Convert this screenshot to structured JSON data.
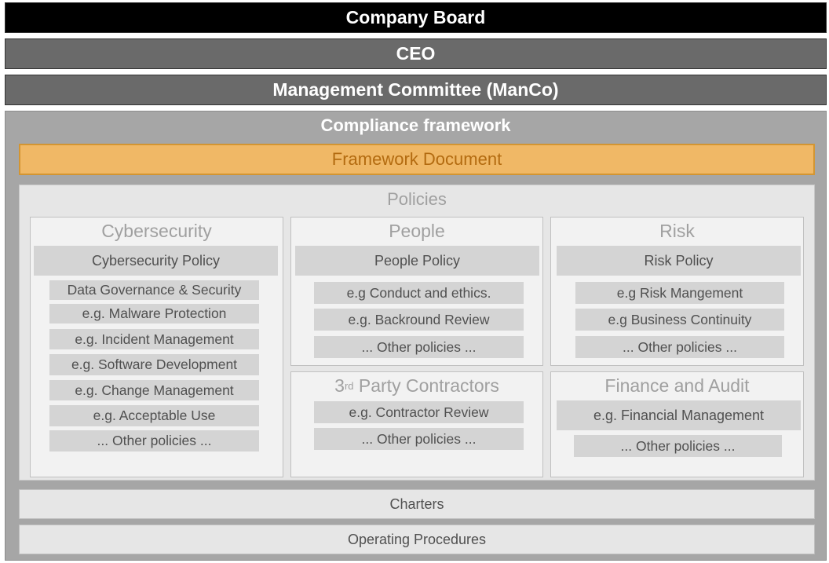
{
  "levels": {
    "board": "Company Board",
    "ceo": "CEO",
    "manco": "Management Committee (ManCo)"
  },
  "compliance": {
    "title": "Compliance framework",
    "framework_document": "Framework Document",
    "policies_title": "Policies",
    "charters": "Charters",
    "operating_procedures": "Operating Procedures"
  },
  "cyber": {
    "title": "Cybersecurity",
    "policy": "Cybersecurity Policy",
    "items": [
      "Data Governance & Security",
      "e.g. Malware Protection",
      "e.g. Incident Management",
      "e.g. Software Development",
      "e.g. Change Management",
      "e.g. Acceptable Use",
      "... Other policies ..."
    ]
  },
  "people": {
    "title": "People",
    "policy": "People Policy",
    "items": [
      "e.g Conduct and ethics.",
      "e.g. Backround Review",
      "... Other policies ..."
    ]
  },
  "risk": {
    "title": "Risk",
    "policy": "Risk Policy",
    "items": [
      "e.g Risk Mangement",
      "e.g Business Continuity",
      "... Other policies ..."
    ]
  },
  "contractors": {
    "title_num": "3",
    "title_sup": "rd",
    "title_rest": " Party Contractors",
    "items": [
      "e.g. Contractor Review",
      "... Other policies ..."
    ]
  },
  "finance": {
    "title": "Finance and Audit",
    "items": [
      "e.g. Financial Management",
      "... Other policies ..."
    ]
  },
  "colors": {
    "board": "#000000",
    "exec_bars": "#6a6a6a",
    "compliance_bg": "#a6a6a6",
    "framework_fill": "#f0b866",
    "framework_text": "#b36b10"
  }
}
